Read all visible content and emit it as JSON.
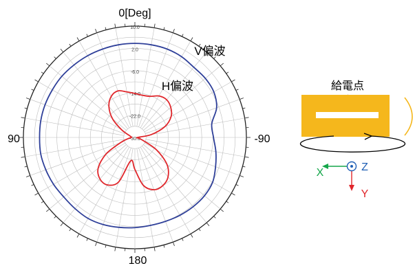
{
  "chart_data": {
    "type": "polar-line",
    "angle_labels": {
      "top": "0[Deg]",
      "left": "90",
      "right": "-90",
      "bottom": "180"
    },
    "radial_ticks": [
      10.0,
      2.0,
      -6.0,
      -14.0,
      -22.0,
      -30.0
    ],
    "radial_tick_labels": [
      "10.0",
      "2.0",
      "-6.0",
      "-14.0",
      "-22.0",
      "-30.0"
    ],
    "rlim": [
      -30,
      10
    ],
    "angle_step_deg": 10,
    "grid": true,
    "series": [
      {
        "name": "V偏波",
        "color": "#2e3f99",
        "angles_deg": [
          0,
          10,
          20,
          30,
          40,
          50,
          60,
          70,
          80,
          90,
          100,
          110,
          120,
          130,
          140,
          150,
          160,
          170,
          180,
          190,
          200,
          210,
          220,
          230,
          240,
          250,
          260,
          270,
          280,
          290,
          300,
          310,
          320,
          330,
          340,
          350
        ],
        "values": [
          3.8,
          3.8,
          3.8,
          3.9,
          4.0,
          4.2,
          4.2,
          4.3,
          4.3,
          4.2,
          4.3,
          4.0,
          3.7,
          3.3,
          3.4,
          3.6,
          3.3,
          2.8,
          2.4,
          2.1,
          2.1,
          2.3,
          2.5,
          2.6,
          2.2,
          0.8,
          -0.5,
          -1.8,
          -2.0,
          1.2,
          2.7,
          3.0,
          2.9,
          3.5,
          3.8,
          3.8
        ]
      },
      {
        "name": "H偏波",
        "color": "#e0262b",
        "angles_deg": [
          0,
          10,
          20,
          30,
          40,
          50,
          60,
          70,
          80,
          90,
          100,
          110,
          120,
          130,
          140,
          150,
          160,
          170,
          180,
          190,
          200,
          210,
          220,
          230,
          240,
          250,
          260,
          270,
          280,
          290,
          300,
          310,
          320,
          330,
          340,
          350
        ],
        "values": [
          -14.2,
          -13.4,
          -12.2,
          -13.0,
          -15.5,
          -19.5,
          -24.5,
          -27.8,
          -28.6,
          -28.8,
          -27.5,
          -24.5,
          -18.0,
          -12.8,
          -10.5,
          -10.3,
          -13.0,
          -21.5,
          -18.5,
          -12.5,
          -10.0,
          -10.0,
          -11.5,
          -15.0,
          -21.0,
          -27.0,
          -28.8,
          -29.0,
          -24.0,
          -18.5,
          -15.0,
          -13.2,
          -12.3,
          -12.8,
          -14.3,
          -14.6
        ]
      }
    ]
  },
  "diagram": {
    "feed_label": "給電点",
    "axes": {
      "x": "X",
      "y": "Y",
      "z": "Z"
    },
    "colors": {
      "plate": "#f5b71c",
      "x_axis": "#14a64a",
      "y_axis": "#e0262b",
      "z_axis": "#1f5fb5"
    }
  }
}
